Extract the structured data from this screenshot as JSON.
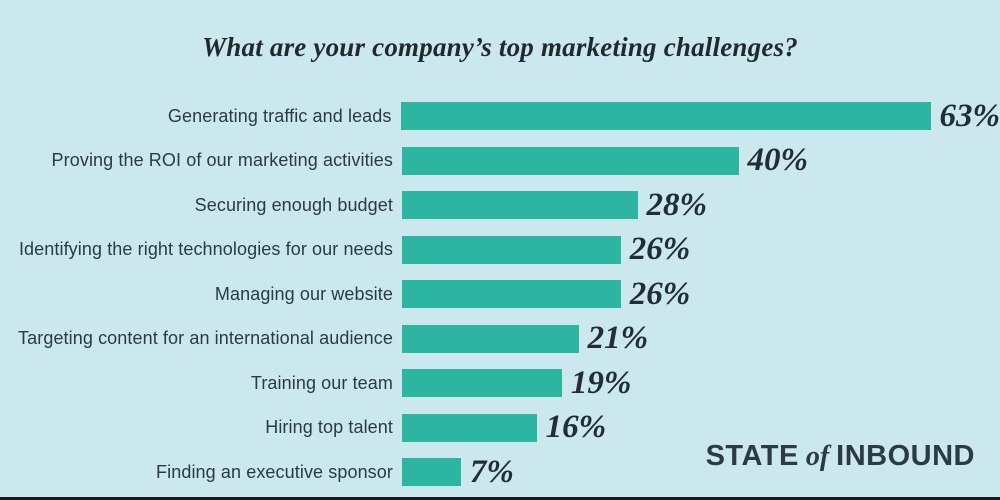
{
  "page": {
    "background": "#cbe8ee",
    "bottom_strip_color": "#141d26"
  },
  "chart_data": {
    "type": "bar",
    "orientation": "horizontal",
    "title": "What are your company’s top marketing challenges?",
    "categories": [
      "Generating traffic and leads",
      "Proving the ROI of our marketing activities",
      "Securing enough budget",
      "Identifying the right technologies for our needs",
      "Managing our website",
      "Targeting content for an international audience",
      "Training our team",
      "Hiring top talent",
      "Finding an executive sponsor"
    ],
    "values": [
      63,
      40,
      28,
      26,
      26,
      21,
      19,
      16,
      7
    ],
    "value_labels": [
      "63%",
      "40%",
      "28%",
      "26%",
      "26%",
      "21%",
      "19%",
      "16%",
      "7%"
    ],
    "xlim": [
      0,
      63
    ],
    "bar_color": "#2cb5a0",
    "grid": false,
    "legend": false
  },
  "branding": {
    "word1": "STATE",
    "word2": "of",
    "word3": "INBOUND"
  }
}
